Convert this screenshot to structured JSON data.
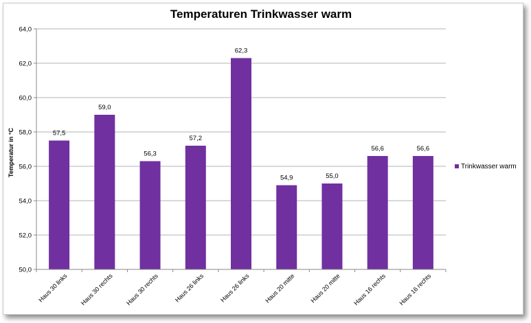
{
  "chart_data": {
    "type": "bar",
    "title": "Temperaturen Trinkwasser warm",
    "xlabel": "",
    "ylabel": "Temperatur in °C",
    "categories": [
      "Haus 30 links",
      "Haus 30 rechts",
      "Haus 30 rechts",
      "Haus 26 links",
      "Haus 26 links",
      "Haus 20 mitte",
      "Haus 20 mitte",
      "Haus 16 rechts",
      "Haus 16 rechts"
    ],
    "series": [
      {
        "name": "Trinkwasser warm",
        "values": [
          57.5,
          59.0,
          56.3,
          57.2,
          62.3,
          54.9,
          55.0,
          56.6,
          56.6
        ],
        "labels": [
          "57,5",
          "59,0",
          "56,3",
          "57,2",
          "62,3",
          "54,9",
          "55,0",
          "56,6",
          "56,6"
        ],
        "color": "#7030a0"
      }
    ],
    "ylim": [
      50,
      64
    ],
    "yticks": [
      50,
      52,
      54,
      56,
      58,
      60,
      62,
      64
    ],
    "ytick_labels": [
      "50,0",
      "52,0",
      "54,0",
      "56,0",
      "58,0",
      "60,0",
      "62,0",
      "64,0"
    ],
    "grid": true,
    "legend": "right",
    "colors": {
      "bar": "#7030a0",
      "grid": "#b3b3b3",
      "axis": "#888888"
    }
  }
}
